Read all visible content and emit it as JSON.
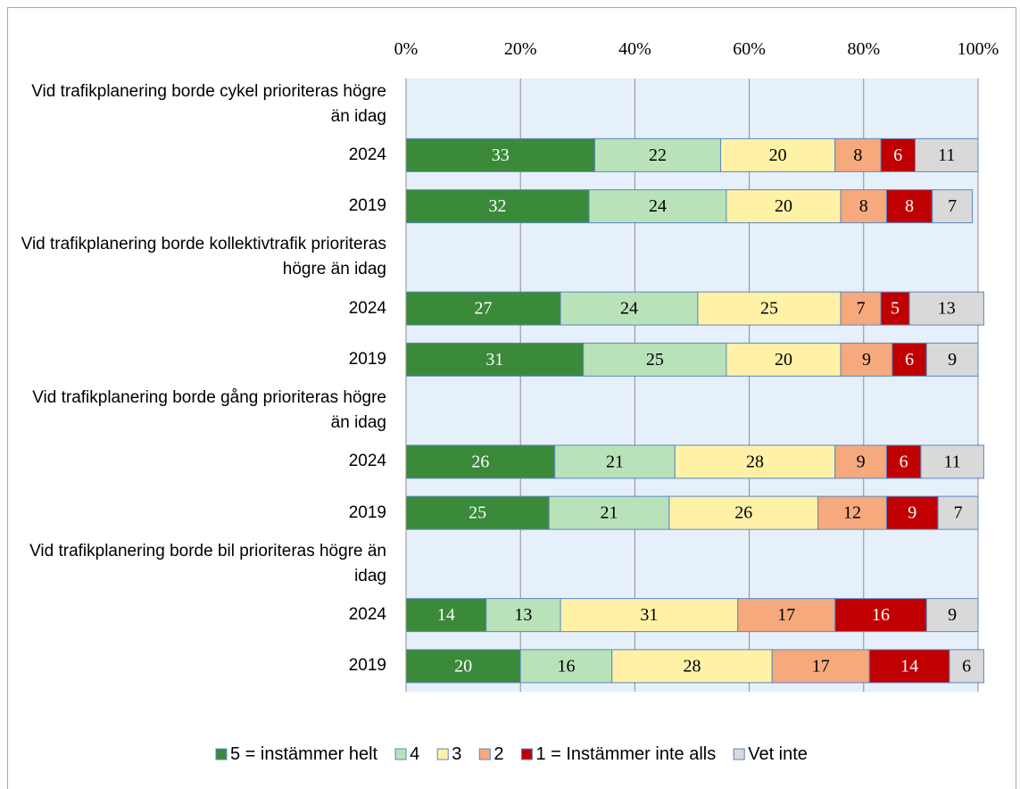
{
  "chart_data": {
    "type": "stacked_barh",
    "categories": [
      "Vid trafikplanering borde cykel prioriteras högre än idag",
      "2024",
      "2019",
      "Vid trafikplanering borde kollektivtrafik prioriteras högre än idag",
      "2024",
      "2019",
      "Vid trafikplanering borde gång prioriteras högre än idag",
      "2024",
      "2019",
      "Vid trafikplanering borde bil prioriteras högre än idag",
      "2024",
      "2019"
    ],
    "series": [
      {
        "name": "5 = instämmer helt",
        "color": "#3a8a3a",
        "text_color": "#ffffff",
        "values": [
          null,
          33,
          32,
          null,
          27,
          31,
          null,
          26,
          25,
          null,
          14,
          20
        ]
      },
      {
        "name": "4",
        "color": "#b9e2b9",
        "text_color": "#000000",
        "values": [
          null,
          22,
          24,
          null,
          24,
          25,
          null,
          21,
          21,
          null,
          13,
          16
        ]
      },
      {
        "name": "3",
        "color": "#fff1a6",
        "text_color": "#000000",
        "values": [
          null,
          20,
          20,
          null,
          25,
          20,
          null,
          28,
          26,
          null,
          31,
          28
        ]
      },
      {
        "name": "2",
        "color": "#f5a97c",
        "text_color": "#000000",
        "values": [
          null,
          8,
          8,
          null,
          7,
          9,
          null,
          9,
          12,
          null,
          17,
          17
        ]
      },
      {
        "name": "1 = Instämmer inte alls",
        "color": "#c00000",
        "text_color": "#ffffff",
        "values": [
          null,
          6,
          8,
          null,
          5,
          6,
          null,
          6,
          9,
          null,
          16,
          14
        ]
      },
      {
        "name": "Vet inte",
        "color": "#d9d9d9",
        "text_color": "#000000",
        "values": [
          null,
          11,
          7,
          null,
          13,
          9,
          null,
          11,
          7,
          null,
          9,
          6
        ]
      }
    ],
    "xlim": [
      0,
      100
    ],
    "xticks": [
      {
        "value": 0,
        "label": "0%"
      },
      {
        "value": 20,
        "label": "20%"
      },
      {
        "value": 40,
        "label": "40%"
      },
      {
        "value": 60,
        "label": "60%"
      },
      {
        "value": 80,
        "label": "80%"
      },
      {
        "value": 100,
        "label": "100%"
      }
    ],
    "grid": true,
    "legend": "bottom"
  }
}
